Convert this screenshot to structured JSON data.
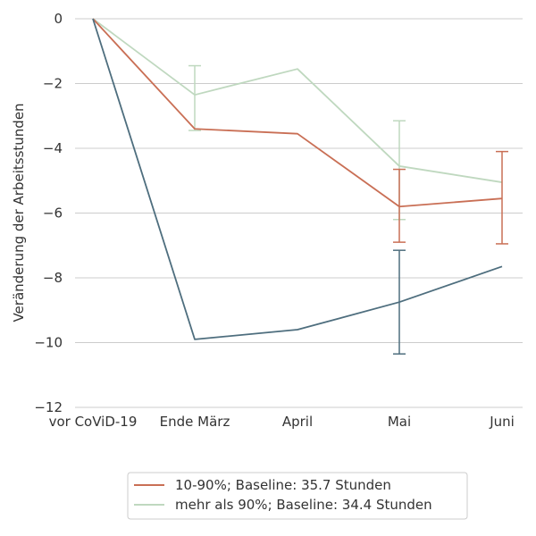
{
  "chart_data": {
    "type": "line",
    "xlabel": "",
    "ylabel": "Veränderung der Arbeitsstunden",
    "categories": [
      "vor CoViD-19",
      "Ende März",
      "April",
      "Mai",
      "Juni"
    ],
    "yticks": [
      0,
      -2,
      -4,
      -6,
      -8,
      -10,
      -12
    ],
    "ylim": [
      -12,
      0
    ],
    "grid": true,
    "legend_position": "bottom-center",
    "series": [
      {
        "name": "",
        "color": "#4e6e7e",
        "values": [
          0,
          -9.9,
          -9.6,
          -8.75,
          -7.65
        ],
        "errorbars": [
          null,
          null,
          null,
          [
            -10.35,
            -7.15
          ],
          null
        ]
      },
      {
        "name": "10-90%; Baseline: 35.7 Stunden",
        "color": "#c96f55",
        "values": [
          0,
          -3.4,
          -3.55,
          -5.8,
          -5.55
        ],
        "errorbars": [
          null,
          null,
          null,
          [
            -6.9,
            -4.65
          ],
          [
            -6.95,
            -4.1
          ]
        ]
      },
      {
        "name": "mehr als 90%; Baseline: 34.4 Stunden",
        "color": "#bfd8bf",
        "values": [
          0,
          -2.35,
          -1.55,
          -4.55,
          -5.05
        ],
        "errorbars": [
          null,
          [
            -3.45,
            -1.45
          ],
          null,
          [
            -6.2,
            -3.15
          ],
          null
        ]
      }
    ]
  }
}
